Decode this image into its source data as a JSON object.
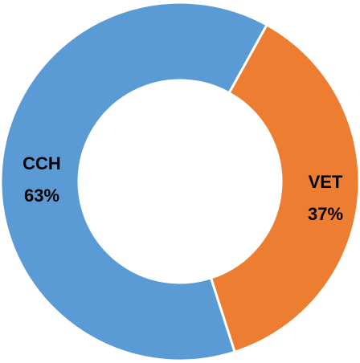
{
  "chart_data": {
    "type": "pie",
    "categories": [
      "CCH",
      "VET"
    ],
    "values": [
      63,
      37
    ],
    "value_labels": [
      "63%",
      "37%"
    ],
    "colors": [
      "#5b9bd5",
      "#ed7d31"
    ]
  }
}
